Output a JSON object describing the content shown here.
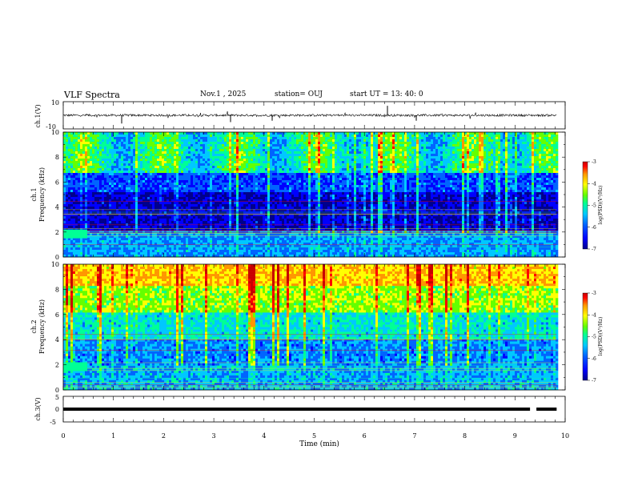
{
  "header": {
    "title": "VLF Spectra",
    "date": "Nov.1 , 2025",
    "station": "station= OUJ",
    "start_ut": "start UT = 13: 40: 0"
  },
  "colors": {
    "colorbar": [
      "#00008c",
      "#0000ff",
      "#0064ff",
      "#00c8ff",
      "#00ff96",
      "#64ff00",
      "#ffff00",
      "#ff9600",
      "#ff0000",
      "#c80000"
    ]
  },
  "chart_data": [
    {
      "id": "ch1-waveform",
      "type": "line",
      "ylabel": "ch.1(V)",
      "ylim": [
        -10,
        10
      ],
      "yticks": [
        "10",
        "-10"
      ],
      "xlim": [
        0,
        10
      ],
      "baseline": 0,
      "description_values": "noise waveform around 0 V"
    },
    {
      "id": "ch1-spectrogram",
      "type": "heatmap",
      "ylabel_top": "ch.1",
      "ylabel": "Frequency (kHz)",
      "ylim": [
        0,
        10
      ],
      "yticks": [
        "0",
        "2",
        "4",
        "6",
        "8",
        "10"
      ],
      "xlim": [
        0,
        10
      ],
      "colorbar": {
        "label": "log(PSD)(V²/Hz)",
        "range": [
          -7,
          -3
        ],
        "ticks": [
          "-3",
          "-4",
          "-5",
          "-6",
          "-7"
        ]
      }
    },
    {
      "id": "ch2-spectrogram",
      "type": "heatmap",
      "ylabel_top": "ch.2",
      "ylabel": "Frequency (kHz)",
      "ylim": [
        0,
        10
      ],
      "yticks": [
        "0",
        "2",
        "4",
        "6",
        "8",
        "10"
      ],
      "xlim": [
        0,
        10
      ],
      "colorbar": {
        "label": "log(PSD)(V²/Hz)",
        "range": [
          -7,
          -3
        ],
        "ticks": [
          "-3",
          "-4",
          "-5",
          "-6",
          "-7"
        ]
      }
    },
    {
      "id": "ch3-line",
      "type": "line",
      "ylabel": "ch.3(V)",
      "ylim": [
        -5,
        5
      ],
      "yticks": [
        "5",
        "0",
        "-5"
      ],
      "xlim": [
        0,
        10
      ],
      "level": -1,
      "gap_at_min": 9.3,
      "xlabel": "Time (min)",
      "xticks": [
        "0",
        "1",
        "2",
        "3",
        "4",
        "5",
        "6",
        "7",
        "8",
        "9",
        "10"
      ]
    }
  ]
}
